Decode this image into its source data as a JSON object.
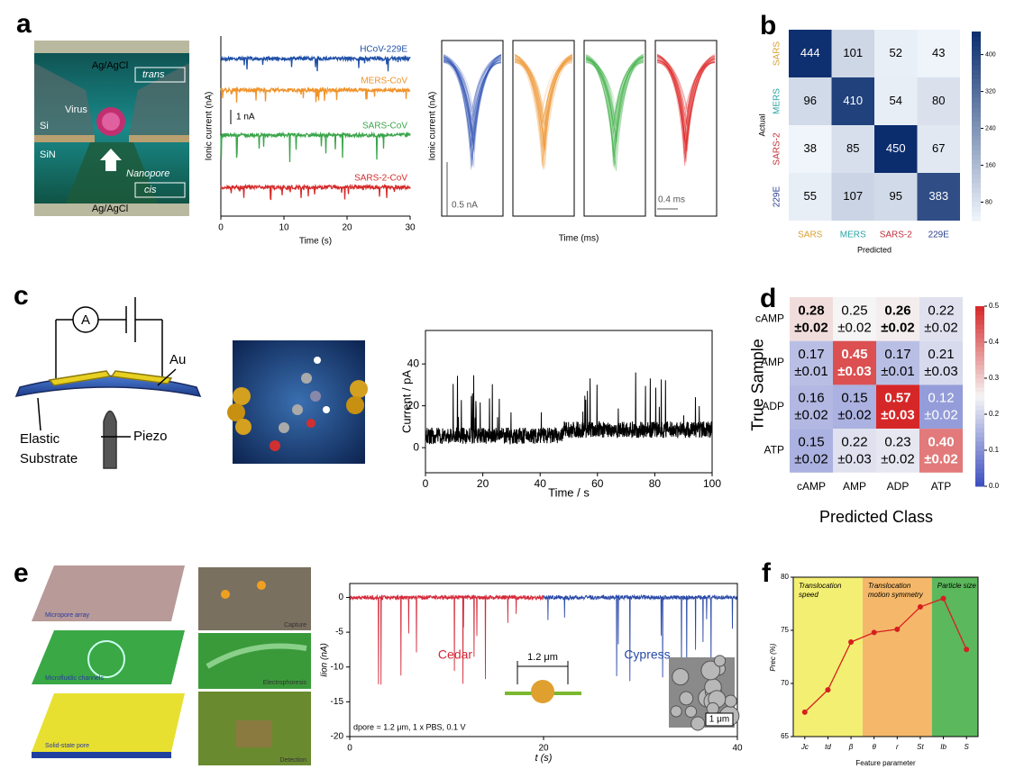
{
  "panel_labels": [
    "a",
    "b",
    "c",
    "d",
    "e",
    "f"
  ],
  "diagram_a": {
    "labels": [
      "Ag/AgCl",
      "trans",
      "Virus",
      "Si",
      "SiN",
      "Nanopore",
      "cis",
      "Ag/AgCl"
    ]
  },
  "diagram_c": {
    "labels": [
      "A",
      "Au",
      "Elastic",
      "Substrate",
      "Piezo"
    ]
  },
  "diagram_e": {
    "labels": [
      "Micropore array",
      "Microfluidic channels",
      "Solid-state pore",
      "Capture",
      "Electrophoresis",
      "Detection"
    ]
  },
  "chart_data": [
    {
      "type": "trace",
      "ylabel": "Ionic current (nA)",
      "xlabel": "Time (s)",
      "xlim": [
        0,
        30
      ],
      "xticks": [
        0,
        10,
        20,
        30
      ],
      "scale_label": "1 nA",
      "series": [
        {
          "name": "HCoV-229E",
          "color": "#1f4fa8"
        },
        {
          "name": "MERS-CoV",
          "color": "#f0932a"
        },
        {
          "name": "SARS-CoV",
          "color": "#3aa64a"
        },
        {
          "name": "SARS-2-CoV",
          "color": "#d62b2b"
        }
      ]
    },
    {
      "type": "events",
      "ylabel": "Ionic current (nA)",
      "xlabel": "Time (ms)",
      "scale_labels": [
        "0.5 nA",
        "0.4 ms"
      ],
      "colors": [
        "#2b4fb5",
        "#f0922a",
        "#3cb043",
        "#e02020"
      ]
    },
    {
      "type": "heatmap",
      "xlabel": "Predicted",
      "ylabel": "Actual",
      "categories": [
        "SARS",
        "MERS",
        "SARS-2",
        "229E"
      ],
      "category_colors": [
        "#d9a030",
        "#2aa3a3",
        "#c0303a",
        "#2a3f8f"
      ],
      "values": [
        [
          444,
          101,
          52,
          43
        ],
        [
          96,
          410,
          54,
          80
        ],
        [
          38,
          85,
          450,
          67
        ],
        [
          55,
          107,
          95,
          383
        ]
      ],
      "zlim": [
        40,
        450
      ],
      "zticks": [
        80,
        160,
        240,
        320,
        400
      ],
      "colors": [
        "#f0f5fb",
        "#0b2d6e"
      ]
    },
    {
      "type": "trace",
      "ylabel": "Current / pA",
      "xlabel": "Time / s",
      "xlim": [
        0,
        100
      ],
      "xticks": [
        0,
        20,
        40,
        60,
        80,
        100
      ],
      "ylim": [
        -12,
        56
      ],
      "yticks": [
        0,
        20,
        40
      ],
      "color": "#000000"
    },
    {
      "type": "heatmap",
      "xlabel": "Predicted Class",
      "ylabel": "True Sample",
      "categories": [
        "cAMP",
        "AMP",
        "ADP",
        "ATP"
      ],
      "values": [
        [
          0.28,
          0.25,
          0.26,
          0.22
        ],
        [
          0.17,
          0.45,
          0.17,
          0.21
        ],
        [
          0.16,
          0.15,
          0.57,
          0.12
        ],
        [
          0.15,
          0.22,
          0.23,
          0.4
        ]
      ],
      "value_labels": [
        [
          "0.28",
          "0.25",
          "0.26",
          "0.22"
        ],
        [
          "0.17",
          "0.45",
          "0.17",
          "0.21"
        ],
        [
          "0.16",
          "0.15",
          "0.57",
          "0.12"
        ],
        [
          "0.15",
          "0.22",
          "0.23",
          "0.40"
        ]
      ],
      "errors": [
        [
          0.02,
          0.02,
          0.02,
          0.02
        ],
        [
          0.01,
          0.03,
          0.01,
          0.03
        ],
        [
          0.02,
          0.02,
          0.03,
          0.02
        ],
        [
          0.02,
          0.03,
          0.02,
          0.02
        ]
      ],
      "error_labels": [
        [
          "±0.02",
          "±0.02",
          "±0.02",
          "±0.02"
        ],
        [
          "±0.01",
          "±0.03",
          "±0.01",
          "±0.03"
        ],
        [
          "±0.02",
          "±0.02",
          "±0.03",
          "±0.02"
        ],
        [
          "±0.02",
          "±0.03",
          "±0.02",
          "±0.02"
        ]
      ],
      "bold": [
        [
          true,
          false,
          true,
          false
        ],
        [
          false,
          true,
          false,
          false
        ],
        [
          false,
          false,
          true,
          false
        ],
        [
          false,
          false,
          false,
          true
        ]
      ],
      "zlim": [
        0,
        0.5
      ],
      "zticks": [
        {
          "value": 0,
          "label": "0.0"
        },
        0.1,
        0.2,
        0.3,
        0.4,
        0.5
      ],
      "colors": [
        "#3b4cc0",
        "#f5f5f5",
        "#d62728"
      ]
    },
    {
      "type": "trace",
      "ylabel": "Iion (nA)",
      "xlabel": "t (s)",
      "xlim": [
        0,
        40
      ],
      "xticks": [
        0,
        20,
        40
      ],
      "ylim": [
        -20,
        2
      ],
      "yticks": [
        0,
        -5,
        -10,
        -15,
        -20
      ],
      "series": [
        {
          "name": "Cedar",
          "color": "#d42a3a"
        },
        {
          "name": "Cypress",
          "color": "#2a4aa8"
        }
      ],
      "annotations": [
        "1.2 μm",
        "dpore = 1.2 μm, 1 x PBS, 0.1 V",
        "1 μm"
      ]
    },
    {
      "type": "line",
      "categories": [
        "Jc",
        "td",
        "β",
        "θ",
        "r",
        "St",
        "Ib",
        "S"
      ],
      "values": [
        67.3,
        69.4,
        73.9,
        74.8,
        75.1,
        77.2,
        78.0,
        73.2
      ],
      "color": "#d62020",
      "ylim": [
        65,
        80
      ],
      "yticks": [
        65,
        70,
        75,
        80
      ],
      "ylabel": "Prec (%)",
      "xlabel": "Feature parameter",
      "regions": [
        {
          "label": [
            "Translocation",
            "speed"
          ],
          "start": 0,
          "end": 2,
          "color": "#f3ef72"
        },
        {
          "label": [
            "Translocation",
            "motion symmetry"
          ],
          "start": 3,
          "end": 5,
          "color": "#f5b86a"
        },
        {
          "label": [
            "Particle size"
          ],
          "start": 6,
          "end": 7,
          "color": "#5cb85c"
        }
      ]
    }
  ]
}
